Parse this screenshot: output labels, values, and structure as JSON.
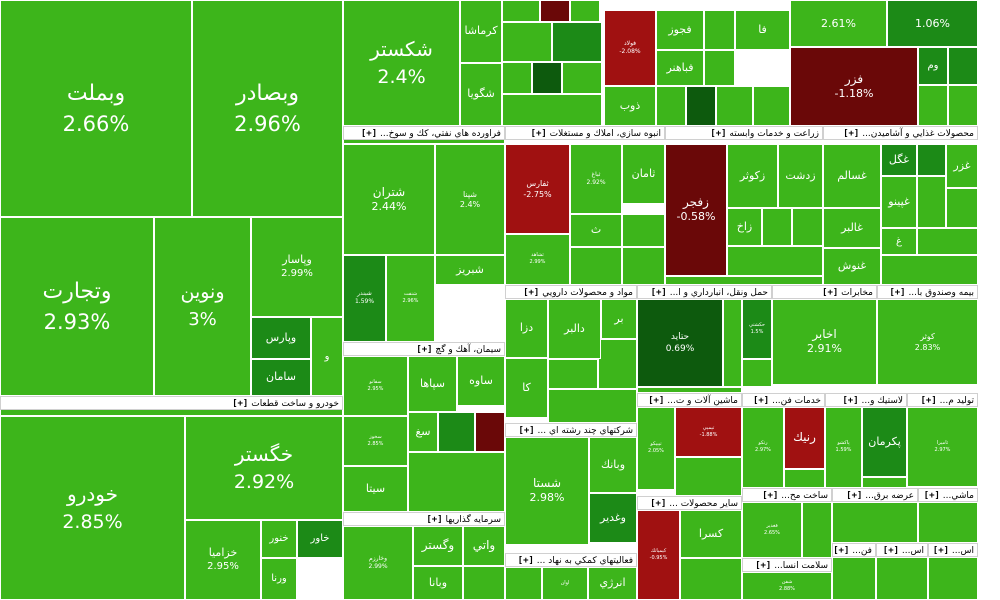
{
  "colors": {
    "green": "#3db51b",
    "mid_green": "#1c8a17",
    "dark_green": "#0d5a0d",
    "light_green": "#5cc73a",
    "red": "#a01111",
    "dark_red": "#6a0808",
    "header_bg": "#ffffff"
  },
  "chart_data": {
    "type": "heatmap",
    "subtype": "treemap",
    "metric": "percent change",
    "sectors": [
      {
        "name": "خودرو و ساخت قطعات",
        "toggle": "[+]"
      },
      {
        "name": "فراورده هاي نفتي، كك و سوخ...",
        "toggle": "[+]"
      },
      {
        "name": "انبوه سازي، املاك و مستغلات",
        "toggle": "[+]"
      },
      {
        "name": "زراعت و خدمات وابسته",
        "toggle": "[+]"
      },
      {
        "name": "محصولات غذايي و آشاميدن...",
        "toggle": "[+]"
      },
      {
        "name": "مواد و محصولات دارويي",
        "toggle": "[+]"
      },
      {
        "name": "حمل ونقل، انبارداري و ا...",
        "toggle": "[+]"
      },
      {
        "name": "مخابرات",
        "toggle": "[+]"
      },
      {
        "name": "بيمه وصندوق با...",
        "toggle": "[+]"
      },
      {
        "name": "سيمان، آهك و گچ",
        "toggle": "[+]"
      },
      {
        "name": "شركتهاي چند رشته اي ...",
        "toggle": "[+]"
      },
      {
        "name": "ماشين آلات و ت...",
        "toggle": "[+]"
      },
      {
        "name": "خدمات فن...",
        "toggle": "[+]"
      },
      {
        "name": "لاستيك و...",
        "toggle": "[+]"
      },
      {
        "name": "توليد م...",
        "toggle": "[+]"
      },
      {
        "name": "سرمايه گذاريها",
        "toggle": "[+]"
      },
      {
        "name": "ساير محصولات ...",
        "toggle": "[+]"
      },
      {
        "name": "ساخت مح...",
        "toggle": "[+]"
      },
      {
        "name": "عرضه برق...",
        "toggle": "[+]"
      },
      {
        "name": "ماشي...",
        "toggle": "[+]"
      },
      {
        "name": "فعاليتهاي كمكي به نهاد ...",
        "toggle": "[+]"
      },
      {
        "name": "سلامت انسا...",
        "toggle": "[+]"
      },
      {
        "name": "فن...",
        "toggle": "[+]"
      },
      {
        "name": "اس...",
        "toggle": "[+]"
      },
      {
        "name": "اس...",
        "toggle": "[+]"
      }
    ],
    "tiles": [
      {
        "symbol": "وبملت",
        "change": "2.66%",
        "color": "green"
      },
      {
        "symbol": "وبصادر",
        "change": "2.96%",
        "color": "green"
      },
      {
        "symbol": "وتجارت",
        "change": "2.93%",
        "color": "green"
      },
      {
        "symbol": "ونوين",
        "change": "3%",
        "color": "green"
      },
      {
        "symbol": "وپاسار",
        "change": "2.99%",
        "color": "green"
      },
      {
        "symbol": "وپارس",
        "change": "",
        "color": "mid_green"
      },
      {
        "symbol": "سامان",
        "change": "",
        "color": "mid_green"
      },
      {
        "symbol": "و",
        "change": "",
        "color": "green"
      },
      {
        "symbol": "شكستر",
        "change": "2.4%",
        "color": "green"
      },
      {
        "symbol": "كرماشا",
        "change": "",
        "color": "green"
      },
      {
        "symbol": "شگويا",
        "change": "",
        "color": "green"
      },
      {
        "symbol": "فجوز",
        "change": "",
        "color": "green"
      },
      {
        "symbol": "فا",
        "change": "",
        "color": "green"
      },
      {
        "symbol": "فباهنر",
        "change": "",
        "color": "green"
      },
      {
        "symbol": "ذوب",
        "change": "",
        "color": "green"
      },
      {
        "symbol": "فولاد",
        "change": "-2.08%",
        "color": "red"
      },
      {
        "symbol": "",
        "change": "2.61%",
        "color": "green"
      },
      {
        "symbol": "",
        "change": "1.06%",
        "color": "mid_green"
      },
      {
        "symbol": "فزر",
        "change": "-1.18%",
        "color": "dark_red"
      },
      {
        "symbol": "وم",
        "change": "",
        "color": "mid_green"
      },
      {
        "symbol": "خودرو",
        "change": "2.85%",
        "color": "green"
      },
      {
        "symbol": "خگستر",
        "change": "2.92%",
        "color": "green"
      },
      {
        "symbol": "خزاميا",
        "change": "2.95%",
        "color": "green"
      },
      {
        "symbol": "خنور",
        "change": "",
        "color": "green"
      },
      {
        "symbol": "خاور",
        "change": "",
        "color": "mid_green"
      },
      {
        "symbol": "ورنا",
        "change": "",
        "color": "green"
      },
      {
        "symbol": "شتران",
        "change": "2.44%",
        "color": "green"
      },
      {
        "symbol": "شپنا",
        "change": "2.4%",
        "color": "green"
      },
      {
        "symbol": "شبريز",
        "change": "",
        "color": "green"
      },
      {
        "symbol": "شبندر",
        "change": "1.59%",
        "color": "mid_green"
      },
      {
        "symbol": "شنفت",
        "change": "2.96%",
        "color": "green"
      },
      {
        "symbol": "ثفارس",
        "change": "-2.75%",
        "color": "red"
      },
      {
        "symbol": "ثباغ",
        "change": "2.92%",
        "color": "green"
      },
      {
        "symbol": "ثامان",
        "change": "",
        "color": "green"
      },
      {
        "symbol": "ث",
        "change": "",
        "color": "green"
      },
      {
        "symbol": "ثشاهد",
        "change": "2.99%",
        "color": "green"
      },
      {
        "symbol": "زفجر",
        "change": "-0.58%",
        "color": "dark_red"
      },
      {
        "symbol": "زكوثر",
        "change": "",
        "color": "green"
      },
      {
        "symbol": "زدشت",
        "change": "",
        "color": "green"
      },
      {
        "symbol": "زاخ",
        "change": "",
        "color": "green"
      },
      {
        "symbol": "غگل",
        "change": "",
        "color": "mid_green"
      },
      {
        "symbol": "غسالم",
        "change": "",
        "color": "green"
      },
      {
        "symbol": "غزر",
        "change": "",
        "color": "green"
      },
      {
        "symbol": "غپينو",
        "change": "",
        "color": "green"
      },
      {
        "symbol": "غالبر",
        "change": "",
        "color": "green"
      },
      {
        "symbol": "غنوش",
        "change": "",
        "color": "green"
      },
      {
        "symbol": "غ",
        "change": "",
        "color": "green"
      },
      {
        "symbol": "دالبر",
        "change": "",
        "color": "green"
      },
      {
        "symbol": "بر",
        "change": "",
        "color": "green"
      },
      {
        "symbol": "دزا",
        "change": "",
        "color": "green"
      },
      {
        "symbol": "كا",
        "change": "",
        "color": "green"
      },
      {
        "symbol": "حتايد",
        "change": "0.69%",
        "color": "dark_green"
      },
      {
        "symbol": "حكشتي",
        "change": "1.5%",
        "color": "mid_green"
      },
      {
        "symbol": "اخابر",
        "change": "2.91%",
        "color": "green"
      },
      {
        "symbol": "كوثر",
        "change": "2.83%",
        "color": "green"
      },
      {
        "symbol": "ساوه",
        "change": "",
        "color": "green"
      },
      {
        "symbol": "سپاها",
        "change": "",
        "color": "green"
      },
      {
        "symbol": "سغ",
        "change": "",
        "color": "green"
      },
      {
        "symbol": "سفانو",
        "change": "2.95%",
        "color": "green"
      },
      {
        "symbol": "سخوز",
        "change": "2.85%",
        "color": "green"
      },
      {
        "symbol": "سيتا",
        "change": "",
        "color": "green"
      },
      {
        "symbol": "وبانك",
        "change": "",
        "color": "green"
      },
      {
        "symbol": "شستا",
        "change": "2.98%",
        "color": "green"
      },
      {
        "symbol": "وغدير",
        "change": "",
        "color": "mid_green"
      },
      {
        "symbol": "تپمپي",
        "change": "-1.88%",
        "color": "red"
      },
      {
        "symbol": "تيپيكو",
        "change": "2.05%",
        "color": "green"
      },
      {
        "symbol": "رنيك",
        "change": "",
        "color": "red"
      },
      {
        "symbol": "رتكو",
        "change": "2.97%",
        "color": "green"
      },
      {
        "symbol": "پاكشو",
        "change": "1.59%",
        "color": "green"
      },
      {
        "symbol": "پكرمان",
        "change": "",
        "color": "mid_green"
      },
      {
        "symbol": "ثاميرا",
        "change": "2.97%",
        "color": "green"
      },
      {
        "symbol": "وخارزم",
        "change": "2.99%",
        "color": "green"
      },
      {
        "symbol": "وگستر",
        "change": "",
        "color": "green"
      },
      {
        "symbol": "واتي",
        "change": "",
        "color": "green"
      },
      {
        "symbol": "وبانا",
        "change": "",
        "color": "green"
      },
      {
        "symbol": "كسرا",
        "change": "",
        "color": "green"
      },
      {
        "symbol": "كيمياتك",
        "change": "-0.95%",
        "color": "red"
      },
      {
        "symbol": "فغدير",
        "change": "2.65%",
        "color": "green"
      },
      {
        "symbol": "انرژي",
        "change": "",
        "color": "green"
      },
      {
        "symbol": "اوان",
        "change": "",
        "color": "green"
      },
      {
        "symbol": "شفن",
        "change": "2.88%",
        "color": "green"
      }
    ]
  }
}
